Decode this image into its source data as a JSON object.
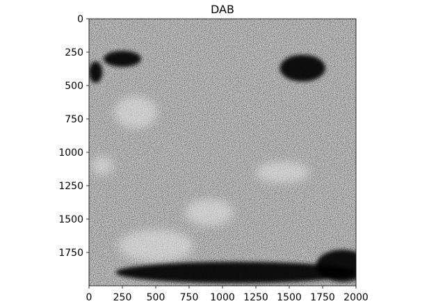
{
  "chart_data": {
    "type": "heatmap",
    "title": "DAB",
    "colormap": "gray",
    "xlabel": "",
    "ylabel": "",
    "xlim": [
      0,
      2000
    ],
    "ylim": [
      2000,
      0
    ],
    "x_ticks": [
      0,
      250,
      500,
      750,
      1000,
      1250,
      1500,
      1750,
      2000
    ],
    "y_ticks": [
      0,
      250,
      500,
      750,
      1000,
      1250,
      1500,
      1750
    ],
    "description_of_pixels": "grayscale microscopy texture image, 2000x2000 pixels",
    "dark_regions": [
      {
        "x": 250,
        "y": 300,
        "rx": 140,
        "ry": 60
      },
      {
        "x": 1600,
        "y": 370,
        "rx": 170,
        "ry": 100
      },
      {
        "x": 1900,
        "y": 1850,
        "rx": 200,
        "ry": 120
      },
      {
        "x": 50,
        "y": 400,
        "rx": 50,
        "ry": 80
      },
      {
        "x": 1100,
        "y": 1900,
        "rx": 900,
        "ry": 80
      }
    ],
    "bright_regions": [
      {
        "x": 500,
        "y": 1700,
        "rx": 280,
        "ry": 120
      },
      {
        "x": 900,
        "y": 1450,
        "rx": 180,
        "ry": 100
      },
      {
        "x": 350,
        "y": 700,
        "rx": 160,
        "ry": 120
      },
      {
        "x": 1450,
        "y": 1150,
        "rx": 200,
        "ry": 80
      },
      {
        "x": 100,
        "y": 1100,
        "rx": 80,
        "ry": 70
      }
    ]
  }
}
